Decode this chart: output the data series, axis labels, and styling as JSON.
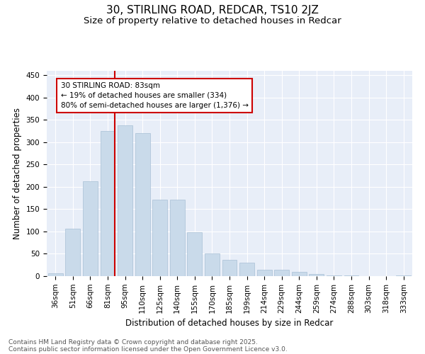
{
  "title_line1": "30, STIRLING ROAD, REDCAR, TS10 2JZ",
  "title_line2": "Size of property relative to detached houses in Redcar",
  "xlabel": "Distribution of detached houses by size in Redcar",
  "ylabel": "Number of detached properties",
  "bar_color": "#c9daea",
  "bar_edge_color": "#a8c0d6",
  "categories": [
    "36sqm",
    "51sqm",
    "66sqm",
    "81sqm",
    "95sqm",
    "110sqm",
    "125sqm",
    "140sqm",
    "155sqm",
    "170sqm",
    "185sqm",
    "199sqm",
    "214sqm",
    "229sqm",
    "244sqm",
    "259sqm",
    "274sqm",
    "288sqm",
    "303sqm",
    "318sqm",
    "333sqm"
  ],
  "values": [
    6,
    107,
    212,
    325,
    338,
    320,
    172,
    172,
    98,
    50,
    36,
    30,
    15,
    15,
    9,
    5,
    1,
    1,
    0,
    0,
    1
  ],
  "vline_bin_index": 3,
  "annotation_text": "30 STIRLING ROAD: 83sqm\n← 19% of detached houses are smaller (334)\n80% of semi-detached houses are larger (1,376) →",
  "annotation_box_color": "#ffffff",
  "annotation_box_edge": "#cc0000",
  "vline_color": "#cc0000",
  "ylim": [
    0,
    460
  ],
  "yticks": [
    0,
    50,
    100,
    150,
    200,
    250,
    300,
    350,
    400,
    450
  ],
  "background_color": "#e8eef8",
  "footer_line1": "Contains HM Land Registry data © Crown copyright and database right 2025.",
  "footer_line2": "Contains public sector information licensed under the Open Government Licence v3.0.",
  "title_fontsize": 11,
  "subtitle_fontsize": 9.5,
  "axis_label_fontsize": 8.5,
  "tick_fontsize": 7.5,
  "annotation_fontsize": 7.5,
  "footer_fontsize": 6.5
}
